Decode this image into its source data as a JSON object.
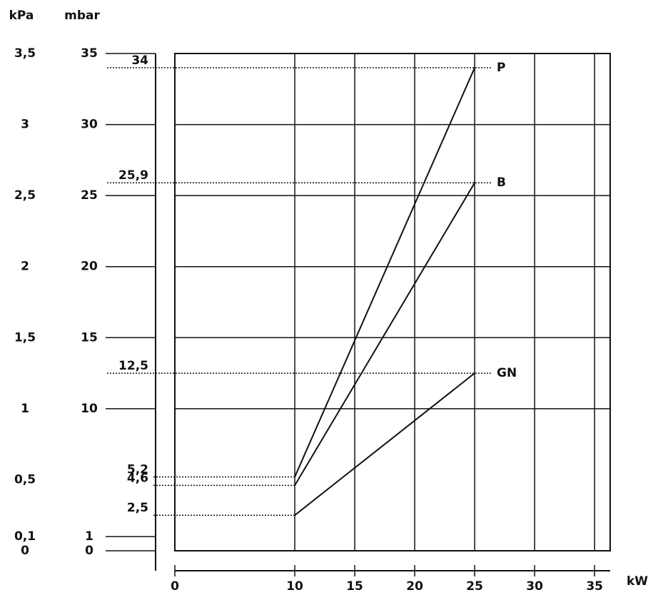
{
  "chart_data": {
    "type": "line",
    "y_label": "mbar",
    "y2_label": "kPa",
    "x_label": "kW",
    "xlim": [
      0,
      36.3
    ],
    "xticks": [
      0,
      10,
      15,
      20,
      25,
      30,
      35
    ],
    "ylim": [
      0,
      35
    ],
    "yticks": [
      0,
      1,
      10,
      15,
      20,
      25,
      30,
      35
    ],
    "y2lim": [
      0,
      3.5
    ],
    "y2ticks": [
      0,
      {
        "value": 0.1,
        "label": "0,1"
      },
      {
        "value": 0.5,
        "label": "0,5"
      },
      1,
      {
        "value": 1.5,
        "label": "1,5"
      },
      2,
      {
        "value": 2.5,
        "label": "2,5"
      },
      3,
      {
        "value": 3.5,
        "label": "3,5"
      }
    ],
    "grid": true,
    "series": [
      {
        "name": "P",
        "color": "#111111",
        "x": [
          10,
          25
        ],
        "values": [
          5.2,
          34
        ],
        "value_labels": [
          "5,2",
          "34"
        ]
      },
      {
        "name": "B",
        "color": "#111111",
        "x": [
          10,
          25
        ],
        "values": [
          4.6,
          25.9
        ],
        "value_labels": [
          "4,6",
          "25,9"
        ]
      },
      {
        "name": "GN",
        "color": "#111111",
        "x": [
          10,
          25
        ],
        "values": [
          2.5,
          12.5
        ],
        "value_labels": [
          "2,5",
          "12,5"
        ]
      }
    ]
  }
}
